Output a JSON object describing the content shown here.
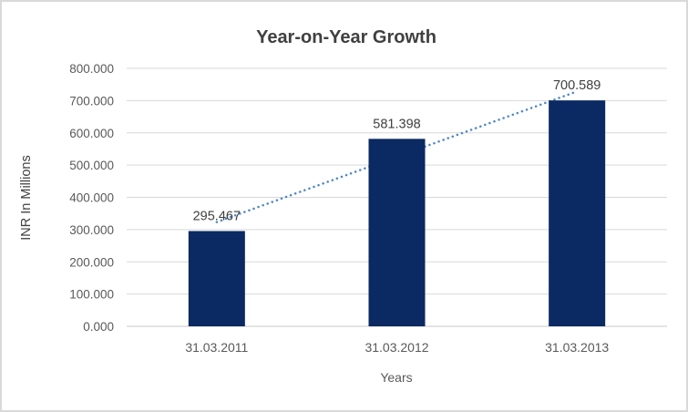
{
  "chart_data": {
    "type": "bar",
    "title": "Year-on-Year Growth",
    "xlabel": "Years",
    "ylabel": "INR In Millions",
    "categories": [
      "31.03.2011",
      "31.03.2012",
      "31.03.2013"
    ],
    "series": [
      {
        "name": "INR In Millions",
        "values": [
          295.467,
          581.398,
          700.589
        ]
      }
    ],
    "data_labels": [
      "295.467",
      "581.398",
      "700.589"
    ],
    "ylim": [
      0,
      800
    ],
    "yticks": [
      0,
      100,
      200,
      300,
      400,
      500,
      600,
      700,
      800
    ],
    "ytick_labels": [
      "0.000",
      "100.000",
      "200.000",
      "300.000",
      "400.000",
      "500.000",
      "600.000",
      "700.000",
      "800.000"
    ],
    "grid": true,
    "legend": "none",
    "trendline": {
      "type": "linear",
      "style": "dotted",
      "spans": "first-to-last-category"
    },
    "colors": {
      "bar": "#0b2962",
      "trend": "#4f86c5",
      "grid": "#d9d9d9",
      "axis_line": "#c9c9c9",
      "title": "#404040",
      "tick": "#595959",
      "data_label": "#3f3f3f",
      "frame_border": "#d9d9d9",
      "background": "#ffffff"
    }
  }
}
